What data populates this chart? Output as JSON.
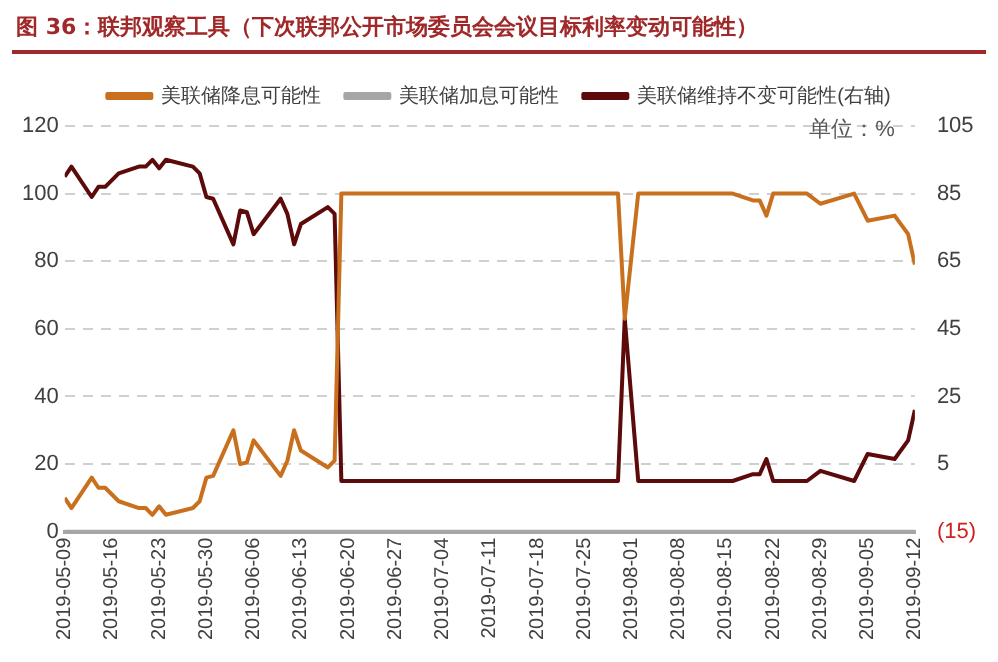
{
  "chart_data": {
    "type": "line",
    "title": "图 36：联邦观察工具（下次联邦公开市场委员会会议目标利率变动可能性）",
    "annotations": [
      "单位：%"
    ],
    "x": [
      "2019-05-09",
      "2019-05-10",
      "2019-05-13",
      "2019-05-14",
      "2019-05-15",
      "2019-05-17",
      "2019-05-20",
      "2019-05-21",
      "2019-05-22",
      "2019-05-23",
      "2019-05-24",
      "2019-05-28",
      "2019-05-29",
      "2019-05-30",
      "2019-05-31",
      "2019-06-03",
      "2019-06-04",
      "2019-06-05",
      "2019-06-06",
      "2019-06-10",
      "2019-06-11",
      "2019-06-12",
      "2019-06-13",
      "2019-06-17",
      "2019-06-18",
      "2019-06-19",
      "2019-07-30",
      "2019-07-31",
      "2019-08-02",
      "2019-08-16",
      "2019-08-19",
      "2019-08-20",
      "2019-08-21",
      "2019-08-22",
      "2019-08-27",
      "2019-08-29",
      "2019-09-03",
      "2019-09-05",
      "2019-09-09",
      "2019-09-11",
      "2019-09-12"
    ],
    "series": [
      {
        "name": "美联储降息可能性",
        "color": "#c8701e",
        "values": [
          10,
          7,
          16,
          13,
          13,
          9,
          7,
          7,
          5,
          7.5,
          5,
          7,
          9,
          16,
          16.5,
          30,
          20,
          20.5,
          27,
          16.5,
          21,
          30,
          24,
          19,
          21,
          100,
          100,
          63,
          100,
          100,
          98,
          98,
          93.5,
          100,
          100,
          97,
          100,
          92,
          93.5,
          88,
          79
        ]
      },
      {
        "name": "美联储加息可能性",
        "color": "#a6a6a6",
        "values": [
          0,
          0,
          0,
          0,
          0,
          0,
          0,
          0,
          0,
          0,
          0,
          0,
          0,
          0,
          0,
          0,
          0,
          0,
          0,
          0,
          0,
          0,
          0,
          0,
          0,
          0,
          0,
          0,
          0,
          0,
          0,
          0,
          0,
          0,
          0,
          0,
          0,
          0,
          0,
          0,
          0
        ]
      },
      {
        "name": "美联储维持不变可能性(右轴)",
        "color": "#5c0a0a",
        "axis": "y2",
        "values": [
          90,
          93,
          84,
          87,
          87,
          91,
          93,
          93,
          95,
          92.5,
          95,
          93,
          91,
          84,
          83.5,
          70,
          80,
          79.5,
          73,
          83.5,
          79,
          70,
          76,
          81,
          79,
          0,
          0,
          48,
          0,
          0,
          2,
          2,
          6.5,
          0,
          0,
          3,
          0,
          8,
          6.5,
          12,
          21
        ]
      }
    ],
    "xlim": [
      "2019-05-09",
      "2019-09-12"
    ],
    "xticks": [
      "2019-05-09",
      "2019-05-16",
      "2019-05-23",
      "2019-05-30",
      "2019-06-06",
      "2019-06-13",
      "2019-06-20",
      "2019-06-27",
      "2019-07-04",
      "2019-07-11",
      "2019-07-18",
      "2019-07-25",
      "2019-08-01",
      "2019-08-08",
      "2019-08-15",
      "2019-08-22",
      "2019-08-29",
      "2019-09-05",
      "2019-09-12"
    ],
    "ylim": [
      0,
      120
    ],
    "yticks": [
      0,
      20,
      40,
      60,
      80,
      100,
      120
    ],
    "y2lim": [
      -15,
      105
    ],
    "y2ticks": [
      {
        "value": -15,
        "label": "(15)"
      },
      5,
      25,
      45,
      65,
      85,
      105
    ],
    "grid": "y",
    "legend": "top",
    "marker": "none",
    "line_style": "solid"
  }
}
